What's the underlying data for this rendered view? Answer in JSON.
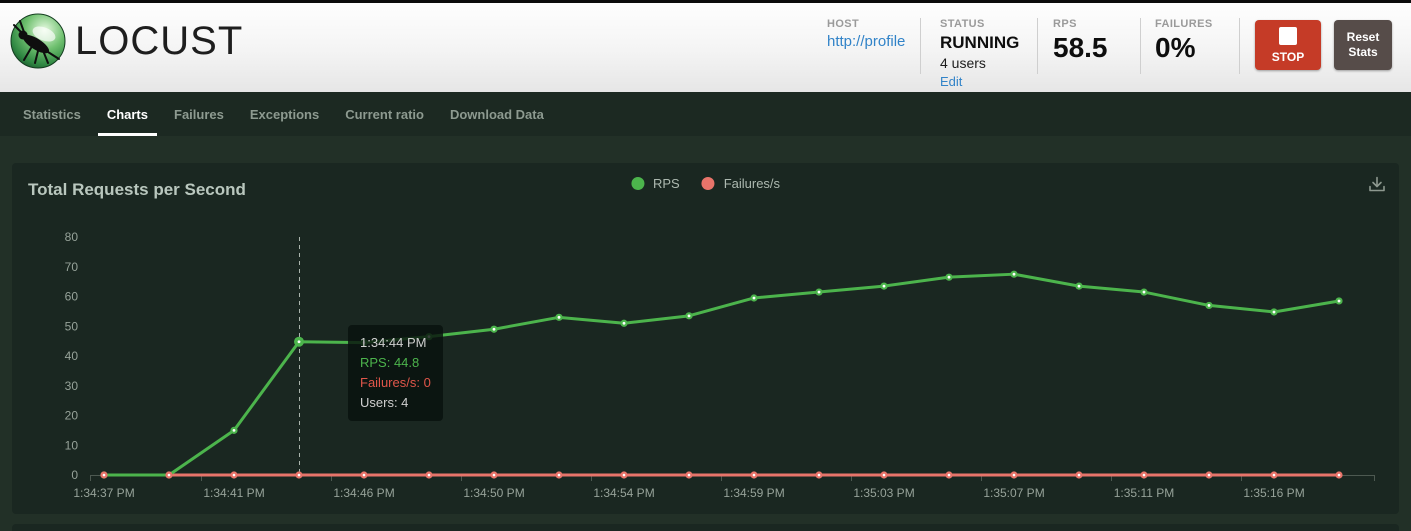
{
  "header": {
    "logo_text": "LOCUST",
    "host": {
      "label": "HOST",
      "value": "http://profile"
    },
    "status": {
      "label": "STATUS",
      "value": "RUNNING",
      "users": "4 users",
      "edit": "Edit"
    },
    "rps": {
      "label": "RPS",
      "value": "58.5"
    },
    "failures": {
      "label": "FAILURES",
      "value": "0%"
    },
    "stop_button": "STOP",
    "reset_button": "Reset Stats"
  },
  "nav": {
    "active": "Charts",
    "items": [
      {
        "label": "Statistics"
      },
      {
        "label": "Charts"
      },
      {
        "label": "Failures"
      },
      {
        "label": "Exceptions"
      },
      {
        "label": "Current ratio"
      },
      {
        "label": "Download Data"
      }
    ]
  },
  "chart": {
    "title": "Total Requests per Second",
    "legend": [
      {
        "label": "RPS",
        "color": "#4cb44c"
      },
      {
        "label": "Failures/s",
        "color": "#e8746a"
      }
    ],
    "icons": {
      "download": "download-icon",
      "logo": "locust-icon"
    }
  },
  "tooltip": {
    "time": "1:34:44 PM",
    "rps": "RPS: 44.8",
    "failures": "Failures/s: 0",
    "users": "Users: 4"
  },
  "colors": {
    "accent_green": "#4cb44c",
    "accent_red": "#e8746a",
    "stop_button_red": "#c53b27",
    "link_blue": "#3183c8",
    "nav_active": "#ffffff"
  },
  "chart_data": {
    "type": "line",
    "title": "Total Requests per Second",
    "x_tick_labels": [
      "1:34:37 PM",
      "1:34:41 PM",
      "1:34:46 PM",
      "1:34:50 PM",
      "1:34:54 PM",
      "1:34:59 PM",
      "1:35:03 PM",
      "1:35:07 PM",
      "1:35:11 PM",
      "1:35:16 PM"
    ],
    "x_label_every": 2,
    "hover_point_index": 3,
    "ylim": [
      0,
      80
    ],
    "y_ticks": [
      0,
      10,
      20,
      30,
      40,
      50,
      60,
      70,
      80
    ],
    "grid": false,
    "legend_position": "top-center",
    "series": [
      {
        "name": "RPS",
        "color": "#4cb44c",
        "values": [
          0,
          0,
          15,
          44.8,
          44.5,
          46.5,
          49,
          53,
          51,
          53.5,
          59.5,
          61.5,
          63.5,
          66.5,
          67.5,
          63.5,
          61.5,
          57,
          54.8,
          58.5
        ]
      },
      {
        "name": "Failures/s",
        "color": "#e8746a",
        "values": [
          0,
          0,
          0,
          0,
          0,
          0,
          0,
          0,
          0,
          0,
          0,
          0,
          0,
          0,
          0,
          0,
          0,
          0,
          0,
          0
        ]
      }
    ]
  }
}
